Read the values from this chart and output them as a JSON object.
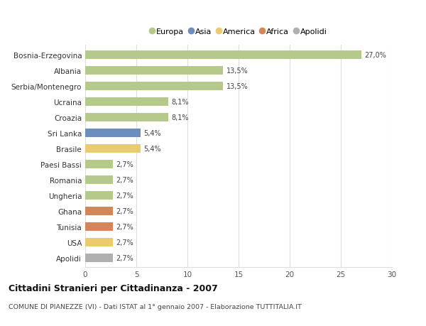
{
  "categories": [
    "Bosnia-Erzegovina",
    "Albania",
    "Serbia/Montenegro",
    "Ucraina",
    "Croazia",
    "Sri Lanka",
    "Brasile",
    "Paesi Bassi",
    "Romania",
    "Ungheria",
    "Ghana",
    "Tunisia",
    "USA",
    "Apolidi"
  ],
  "values": [
    27.0,
    13.5,
    13.5,
    8.1,
    8.1,
    5.4,
    5.4,
    2.7,
    2.7,
    2.7,
    2.7,
    2.7,
    2.7,
    2.7
  ],
  "labels": [
    "27,0%",
    "13,5%",
    "13,5%",
    "8,1%",
    "8,1%",
    "5,4%",
    "5,4%",
    "2,7%",
    "2,7%",
    "2,7%",
    "2,7%",
    "2,7%",
    "2,7%",
    "2,7%"
  ],
  "colors": [
    "#b5c98a",
    "#b5c98a",
    "#b5c98a",
    "#b5c98a",
    "#b5c98a",
    "#6b8fbd",
    "#e8cc6e",
    "#b5c98a",
    "#b5c98a",
    "#b5c98a",
    "#d4855a",
    "#d4855a",
    "#e8cc6e",
    "#b0b0b0"
  ],
  "legend_labels": [
    "Europa",
    "Asia",
    "America",
    "Africa",
    "Apolidi"
  ],
  "legend_colors": [
    "#b5c98a",
    "#6b8fbd",
    "#e8cc6e",
    "#d4855a",
    "#b0b0b0"
  ],
  "title": "Cittadini Stranieri per Cittadinanza - 2007",
  "subtitle": "COMUNE DI PIANEZZE (VI) - Dati ISTAT al 1° gennaio 2007 - Elaborazione TUTTITALIA.IT",
  "xlim": [
    0,
    30
  ],
  "xticks": [
    0,
    5,
    10,
    15,
    20,
    25,
    30
  ],
  "bg_color": "#ffffff",
  "grid_color": "#dddddd",
  "bar_height": 0.55
}
